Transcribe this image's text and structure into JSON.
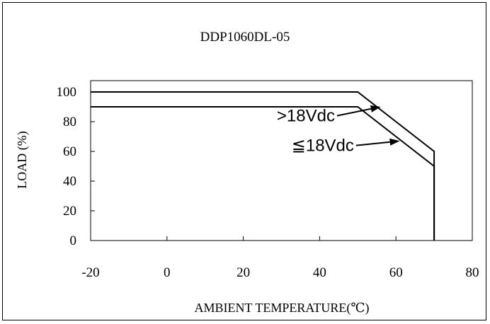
{
  "chart_data": {
    "type": "line",
    "title": "DDP1060DL-05",
    "xlabel": "AMBIENT TEMPERATURE(℃)",
    "ylabel": "LOAD (%)",
    "xlim": [
      -20,
      80
    ],
    "ylim": [
      0,
      100
    ],
    "xticks": [
      -20,
      0,
      20,
      40,
      60,
      80
    ],
    "yticks": [
      0,
      20,
      40,
      60,
      80,
      100
    ],
    "grid": false,
    "series": [
      {
        "name": ">18Vdc",
        "x": [
          -20,
          50,
          70,
          70
        ],
        "y": [
          100,
          100,
          60,
          0
        ]
      },
      {
        "name": "≦18Vdc",
        "x": [
          -20,
          50,
          70,
          70
        ],
        "y": [
          90,
          90,
          50,
          0
        ]
      }
    ],
    "annotations": [
      {
        "text": ">18Vdc",
        "x": 44,
        "y": 84,
        "arrow_to": [
          56,
          90
        ]
      },
      {
        "text": "≦18Vdc",
        "x": 49,
        "y": 64,
        "arrow_to": [
          61,
          67
        ]
      }
    ],
    "colors": {
      "line": "#000000",
      "background": "#ffffff"
    }
  }
}
